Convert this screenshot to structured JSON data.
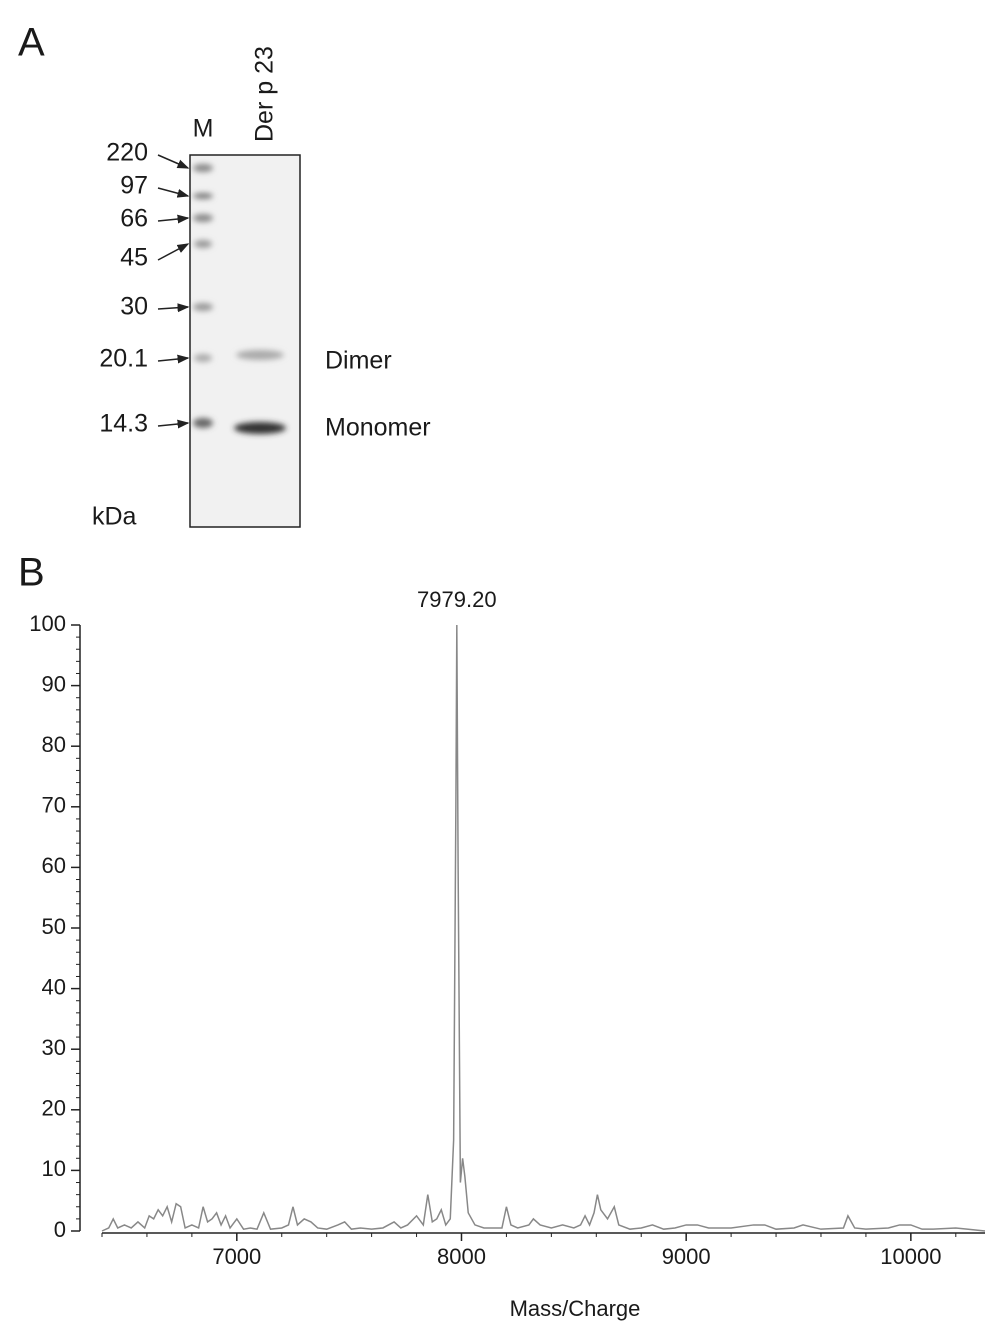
{
  "panel_a": {
    "label": "A",
    "lanes": [
      "M",
      "Der p 23"
    ],
    "markers": [
      "220",
      "97",
      "66",
      "45",
      "30",
      "20.1",
      "14.3"
    ],
    "unit": "kDa",
    "bands": [
      "Dimer",
      "Monomer"
    ]
  },
  "panel_b_label": "B",
  "chart_data": {
    "type": "line",
    "xlabel": "Mass/Charge",
    "color": "#888888",
    "x": [
      6400,
      6430,
      6450,
      6470,
      6500,
      6530,
      6560,
      6590,
      6610,
      6630,
      6650,
      6670,
      6690,
      6710,
      6730,
      6750,
      6770,
      6800,
      6830,
      6850,
      6870,
      6890,
      6910,
      6930,
      6950,
      6970,
      7000,
      7030,
      7060,
      7090,
      7120,
      7150,
      7200,
      7230,
      7250,
      7270,
      7300,
      7330,
      7360,
      7400,
      7450,
      7480,
      7510,
      7550,
      7600,
      7650,
      7700,
      7730,
      7760,
      7800,
      7830,
      7850,
      7870,
      7890,
      7910,
      7930,
      7950,
      7965,
      7975,
      7979.2,
      7985,
      7995,
      8005,
      8015,
      8030,
      8060,
      8100,
      8150,
      8180,
      8200,
      8220,
      8250,
      8300,
      8320,
      8350,
      8400,
      8450,
      8500,
      8530,
      8550,
      8570,
      8590,
      8605,
      8620,
      8650,
      8680,
      8700,
      8750,
      8800,
      8850,
      8900,
      8950,
      9000,
      9050,
      9100,
      9200,
      9300,
      9350,
      9400,
      9480,
      9520,
      9600,
      9700,
      9720,
      9750,
      9800,
      9900,
      9950,
      10000,
      10050,
      10100,
      10200,
      10250,
      10330
    ],
    "values": [
      0,
      0.5,
      2,
      0.5,
      1,
      0.5,
      1.5,
      0.5,
      2.5,
      2,
      3.5,
      2.5,
      4,
      1.5,
      4.5,
      4,
      0.5,
      1,
      0.5,
      4,
      1.5,
      2,
      3,
      1,
      2.5,
      0.5,
      2,
      0.3,
      0.5,
      0.3,
      3,
      0.3,
      0.5,
      1,
      4,
      1,
      2,
      1.5,
      0.5,
      0.3,
      1,
      1.5,
      0.3,
      0.5,
      0.3,
      0.5,
      1.5,
      0.5,
      1,
      2.5,
      1,
      6,
      1.5,
      2,
      3.5,
      1,
      2,
      15,
      70,
      100,
      60,
      8,
      12,
      9,
      3,
      1,
      0.5,
      0.5,
      0.5,
      4,
      1,
      0.5,
      1,
      2,
      1,
      0.5,
      1,
      0.5,
      1,
      2.5,
      1,
      3,
      6,
      3.5,
      2,
      4,
      1,
      0.3,
      0.5,
      1,
      0.3,
      0.5,
      1,
      1,
      0.5,
      0.5,
      1,
      1,
      0.3,
      0.5,
      1,
      0.3,
      0.5,
      2.5,
      0.5,
      0.3,
      0.5,
      1,
      1,
      0.3,
      0.3,
      0.5,
      0.3,
      0
    ],
    "xlim": [
      6400,
      10330
    ],
    "ylim": [
      0,
      100
    ],
    "xticks": [
      7000,
      8000,
      9000,
      10000
    ],
    "yticks": [
      0,
      10,
      20,
      30,
      40,
      50,
      60,
      70,
      80,
      90,
      100
    ],
    "minor_ticks": true,
    "annotations": [
      {
        "text": "7979.20",
        "x": 7979.2,
        "y": 100
      }
    ]
  }
}
